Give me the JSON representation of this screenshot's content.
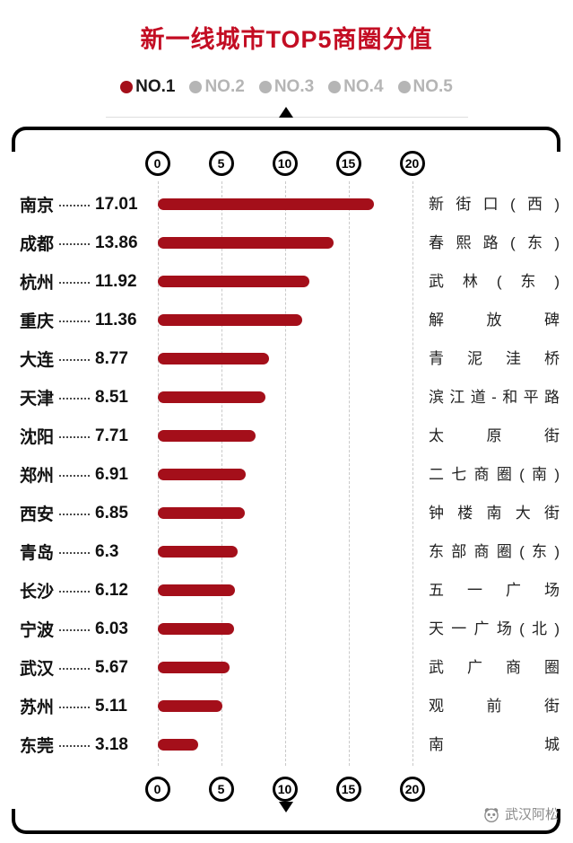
{
  "title": "新一线城市TOP5商圈分值",
  "colors": {
    "title": "#c30d23",
    "bar": "#a40f1a",
    "legend_inactive": "#b5b5b5",
    "axis": "#000000",
    "gridline": "#c9c9c9"
  },
  "legend": {
    "items": [
      {
        "label": "NO.1",
        "dot_color": "#a40f1a",
        "text_color": "#1a1a1a"
      },
      {
        "label": "NO.2",
        "dot_color": "#b5b5b5",
        "text_color": "#b5b5b5"
      },
      {
        "label": "NO.3",
        "dot_color": "#b5b5b5",
        "text_color": "#b5b5b5"
      },
      {
        "label": "NO.4",
        "dot_color": "#b5b5b5",
        "text_color": "#b5b5b5"
      },
      {
        "label": "NO.5",
        "dot_color": "#b5b5b5",
        "text_color": "#b5b5b5"
      }
    ]
  },
  "chart_data": {
    "type": "bar",
    "orientation": "horizontal",
    "title": "新一线城市TOP5商圈分值",
    "categories": [
      "南京",
      "成都",
      "杭州",
      "重庆",
      "大连",
      "天津",
      "沈阳",
      "郑州",
      "西安",
      "青岛",
      "长沙",
      "宁波",
      "武汉",
      "苏州",
      "东莞"
    ],
    "values": [
      17.01,
      13.86,
      11.92,
      11.36,
      8.77,
      8.51,
      7.71,
      6.91,
      6.85,
      6.3,
      6.12,
      6.03,
      5.67,
      5.11,
      3.18
    ],
    "right_labels": [
      "新街口(西)",
      "春熙路(东)",
      "武林(东)",
      "解放碑",
      "青泥洼桥",
      "滨江道-和平路",
      "太原街",
      "二七商圈(南)",
      "钟楼南大街",
      "东部商圈(东)",
      "五一广场",
      "天一广场(北)",
      "武广商圈",
      "观前街",
      "南城"
    ],
    "xticks": [
      0,
      5,
      10,
      15,
      20
    ],
    "xlim": [
      0,
      20
    ],
    "grid": "vertical-dashed",
    "legend_position": "top",
    "legend_entries": [
      "NO.1",
      "NO.2",
      "NO.3",
      "NO.4",
      "NO.5"
    ]
  },
  "watermark": {
    "text": "武汉阿松"
  }
}
